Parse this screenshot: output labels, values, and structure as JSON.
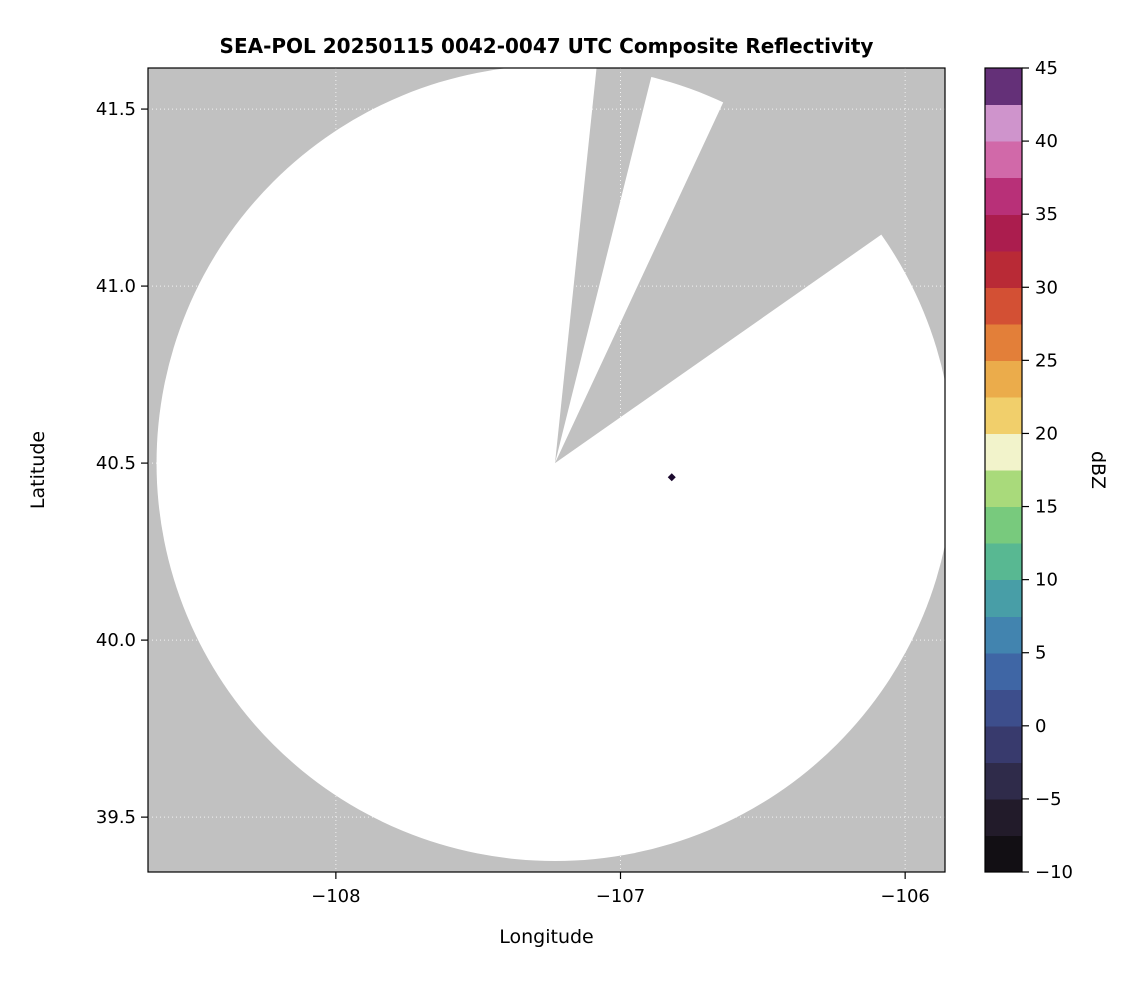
{
  "chart_data": {
    "type": "radar_ppi_map",
    "title": "SEA-POL 20250115 0042-0047 UTC Composite Reflectivity",
    "xlabel": "Longitude",
    "ylabel": "Latitude",
    "xlim": [
      -108.66,
      -105.86
    ],
    "ylim": [
      39.345,
      41.616
    ],
    "xticks": {
      "values": [
        -108,
        -107,
        -106
      ],
      "labels": [
        "−108",
        "−107",
        "−106"
      ]
    },
    "yticks": {
      "values": [
        39.5,
        40.0,
        40.5,
        41.0,
        41.5
      ],
      "labels": [
        "39.5",
        "40.0",
        "40.5",
        "41.0",
        "41.5"
      ]
    },
    "grid": true,
    "colors": {
      "outside_scan": "#c1c1c1",
      "scan_area": "#ffffff",
      "gridline": "#ffffff",
      "frame": "#000000"
    },
    "radar": {
      "center_lon": -107.23,
      "center_lat": 40.5,
      "range_deg_lon": 1.4,
      "range_deg_lat": 1.124,
      "blocked_sectors_azimuth_deg": [
        [
          6,
          14
        ],
        [
          25,
          55
        ]
      ]
    },
    "echoes": [
      {
        "lon": -106.82,
        "lat": 40.46,
        "approx_dbz": 45,
        "color": "#1c0a2e"
      }
    ],
    "colorbar": {
      "label": "dBZ",
      "min": -10,
      "max": 45,
      "step": 2.5,
      "tick_values": [
        45,
        40,
        35,
        30,
        25,
        20,
        15,
        10,
        5,
        0,
        -5,
        -10
      ],
      "tick_labels": [
        "45",
        "40",
        "35",
        "30",
        "25",
        "20",
        "15",
        "10",
        "5",
        "0",
        "−5",
        "−10"
      ],
      "stops": [
        {
          "v": -10,
          "c": "#0a0a0a"
        },
        {
          "v": -7,
          "c": "#1c1622"
        },
        {
          "v": -5,
          "c": "#2b2438"
        },
        {
          "v": -2,
          "c": "#353463"
        },
        {
          "v": 0,
          "c": "#3c437e"
        },
        {
          "v": 3,
          "c": "#3f5da0"
        },
        {
          "v": 5,
          "c": "#3f74ae"
        },
        {
          "v": 7,
          "c": "#438eb0"
        },
        {
          "v": 10,
          "c": "#4caaa0"
        },
        {
          "v": 12,
          "c": "#5fc08a"
        },
        {
          "v": 15,
          "c": "#8ad174"
        },
        {
          "v": 17,
          "c": "#bce07f"
        },
        {
          "v": 18,
          "c": "#e4eeb0"
        },
        {
          "v": 19,
          "c": "#f6f5d4"
        },
        {
          "v": 20,
          "c": "#f3e288"
        },
        {
          "v": 22,
          "c": "#efc45a"
        },
        {
          "v": 25,
          "c": "#e89a40"
        },
        {
          "v": 27,
          "c": "#e06f35"
        },
        {
          "v": 30,
          "c": "#ca3a33"
        },
        {
          "v": 32,
          "c": "#ae2038"
        },
        {
          "v": 35,
          "c": "#a81b5e"
        },
        {
          "v": 37,
          "c": "#c23c88"
        },
        {
          "v": 39,
          "c": "#d36fae"
        },
        {
          "v": 41,
          "c": "#d99ed2"
        },
        {
          "v": 43,
          "c": "#8a4fa0"
        },
        {
          "v": 44,
          "c": "#57256a"
        },
        {
          "v": 45,
          "c": "#270d33"
        }
      ]
    }
  }
}
